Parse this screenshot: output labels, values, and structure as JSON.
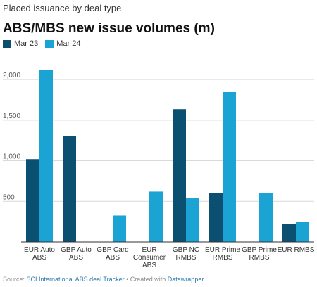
{
  "kicker": "Placed issuance by deal type",
  "title": "ABS/MBS new issue volumes (m)",
  "source": {
    "prefix": "Source: ",
    "link": "SCI International ABS deal Tracker",
    "middle": " • Created with ",
    "brand": "Datawrapper"
  },
  "colors": {
    "series0": "#0b4f71",
    "series1": "#1aa3d3",
    "grid": "#d9d9d9",
    "axis": "#333333"
  },
  "chart_data": {
    "type": "bar",
    "categories": [
      [
        "EUR Auto",
        "ABS"
      ],
      [
        "GBP Auto",
        "ABS"
      ],
      [
        "GBP Card",
        "ABS"
      ],
      [
        "EUR",
        "Consumer",
        "ABS"
      ],
      [
        "GBP NC",
        "RMBS"
      ],
      [
        "EUR Prime",
        "RMBS"
      ],
      [
        "GBP Prime",
        "RMBS"
      ],
      [
        "EUR RMBS"
      ]
    ],
    "series": [
      {
        "name": "Mar 23",
        "values": [
          1020,
          1305,
          null,
          null,
          1635,
          600,
          null,
          220
        ]
      },
      {
        "name": "Mar 24",
        "values": [
          2115,
          null,
          325,
          620,
          545,
          1845,
          600,
          250
        ]
      }
    ],
    "yticks": [
      500,
      1000,
      1500,
      2000
    ],
    "ytick_labels": [
      "500",
      "1,000",
      "1,500",
      "2,000"
    ],
    "ylim": [
      0,
      2200
    ],
    "grid": true,
    "legend": "top-left"
  }
}
